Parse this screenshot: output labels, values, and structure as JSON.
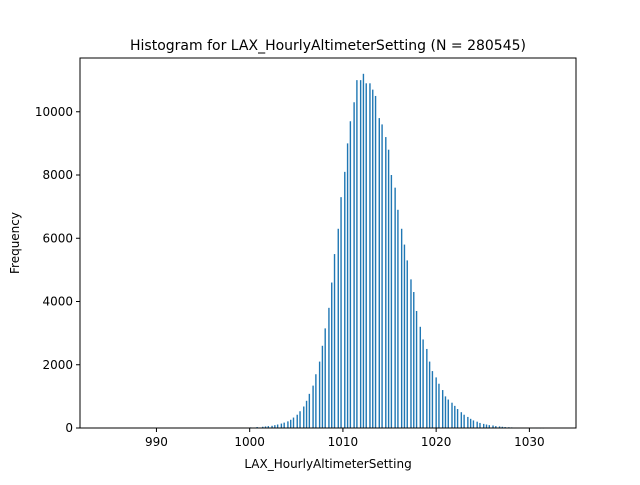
{
  "chart_data": {
    "type": "bar",
    "title": "Histogram for LAX_HourlyAltimeterSetting (N = 280545)",
    "xlabel": "LAX_HourlyAltimeterSetting",
    "ylabel": "Frequency",
    "xlim": [
      981.8,
      1035
    ],
    "ylim": [
      0,
      11700
    ],
    "xticks": [
      990,
      1000,
      1010,
      1020,
      1030
    ],
    "yticks": [
      0,
      2000,
      4000,
      6000,
      8000,
      10000
    ],
    "bar_color": "#1f77b4",
    "grid": false,
    "x": [
      984.9,
      1000.1,
      1000.8,
      1001.4,
      1001.7,
      1002.0,
      1002.4,
      1002.7,
      1003.0,
      1003.4,
      1003.7,
      1004.1,
      1004.4,
      1004.7,
      1005.1,
      1005.4,
      1005.8,
      1006.1,
      1006.4,
      1006.8,
      1007.1,
      1007.5,
      1007.8,
      1008.1,
      1008.5,
      1008.8,
      1009.1,
      1009.5,
      1009.8,
      1010.2,
      1010.5,
      1010.8,
      1011.2,
      1011.5,
      1011.9,
      1012.2,
      1012.5,
      1012.9,
      1013.2,
      1013.5,
      1013.9,
      1014.2,
      1014.6,
      1014.9,
      1015.2,
      1015.6,
      1015.9,
      1016.3,
      1016.6,
      1016.9,
      1017.3,
      1017.6,
      1017.9,
      1018.3,
      1018.6,
      1019.0,
      1019.3,
      1019.6,
      1020.0,
      1020.3,
      1020.7,
      1021.0,
      1021.3,
      1021.7,
      1022.0,
      1022.3,
      1022.7,
      1023.0,
      1023.4,
      1023.7,
      1024.0,
      1024.4,
      1024.7,
      1025.1,
      1025.4,
      1025.7,
      1026.1,
      1026.4,
      1026.8,
      1027.1,
      1027.4,
      1027.8,
      1028.1,
      1028.4,
      1028.8,
      1029.1,
      1029.5,
      1029.8,
      1030.1,
      1030.5,
      1030.8,
      1031.2,
      1031.5
    ],
    "values": [
      10,
      20,
      30,
      40,
      50,
      60,
      70,
      90,
      110,
      140,
      170,
      210,
      260,
      330,
      420,
      530,
      680,
      860,
      1080,
      1340,
      1700,
      2100,
      2600,
      3150,
      3800,
      4600,
      5500,
      6300,
      7300,
      8100,
      9000,
      9700,
      10300,
      11000,
      11000,
      11200,
      10900,
      10900,
      10700,
      10500,
      9800,
      9600,
      9200,
      8800,
      8000,
      7600,
      6900,
      6300,
      5800,
      5300,
      4700,
      4300,
      3700,
      3200,
      2800,
      2500,
      2100,
      1800,
      1600,
      1400,
      1200,
      1000,
      900,
      800,
      700,
      600,
      500,
      420,
      350,
      290,
      240,
      200,
      160,
      130,
      110,
      90,
      80,
      60,
      50,
      40,
      30,
      25,
      20,
      15,
      12,
      10,
      8,
      6,
      5,
      4,
      3,
      2,
      2
    ]
  }
}
